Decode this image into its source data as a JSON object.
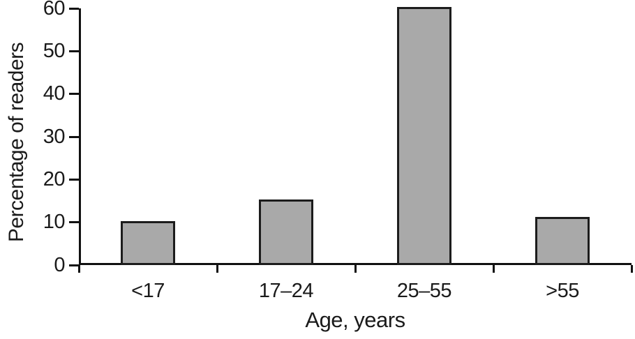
{
  "chart_data": {
    "type": "bar",
    "title": "",
    "xlabel": "Age, years",
    "ylabel": "Percentage of readers",
    "categories": [
      "<17",
      "17–24",
      "25–55",
      ">55"
    ],
    "values": [
      10,
      15,
      60,
      11
    ],
    "ylim": [
      0,
      60
    ],
    "yticks": [
      0,
      10,
      20,
      30,
      40,
      50,
      60
    ],
    "grid": false,
    "legend": false,
    "colors": {
      "bar_fill": "#a9a9a9",
      "bar_border": "#1c1c1c",
      "axis": "#111111",
      "text": "#1a1a1a",
      "background": "#ffffff"
    }
  }
}
